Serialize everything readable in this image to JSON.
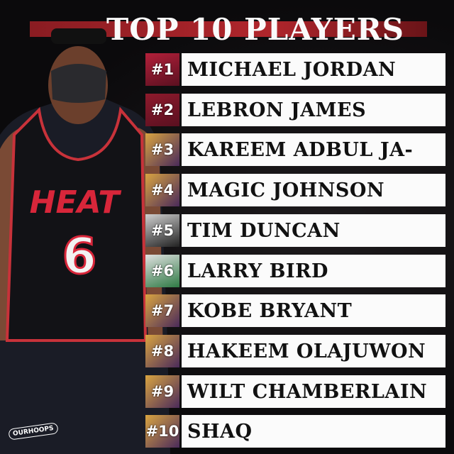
{
  "title": "TOP 10 PLAYERS",
  "players": [
    {
      "rank": "#1",
      "name": "MICHAEL JORDAN",
      "team_color": "#b3203a"
    },
    {
      "rank": "#2",
      "name": "LEBRON JAMES",
      "team_color": "#8e1a2c"
    },
    {
      "rank": "#3",
      "name": "KAREEM ADBUL JA-",
      "team_color": "#d9a441"
    },
    {
      "rank": "#4",
      "name": "MAGIC JOHNSON",
      "team_color": "#d9a441"
    },
    {
      "rank": "#5",
      "name": "TIM DUNCAN",
      "team_color": "#9a9a9a"
    },
    {
      "rank": "#6",
      "name": "LARRY BIRD",
      "team_color": "#2f7a45"
    },
    {
      "rank": "#7",
      "name": "KOBE BRYANT",
      "team_color": "#d9a441"
    },
    {
      "rank": "#8",
      "name": "HAKEEM OLAJUWON",
      "team_color": "#d9a441"
    },
    {
      "rank": "#9",
      "name": "WILT CHAMBERLAIN",
      "team_color": "#d9a441"
    },
    {
      "rank": "#10",
      "name": "SHAQ",
      "team_color": "#d9a441"
    }
  ],
  "jersey": {
    "team": "HEAT",
    "number": "6"
  },
  "watermark": "OURHOOPS",
  "colors": {
    "accent": "#b0262c",
    "background": "#0c0b0d"
  }
}
